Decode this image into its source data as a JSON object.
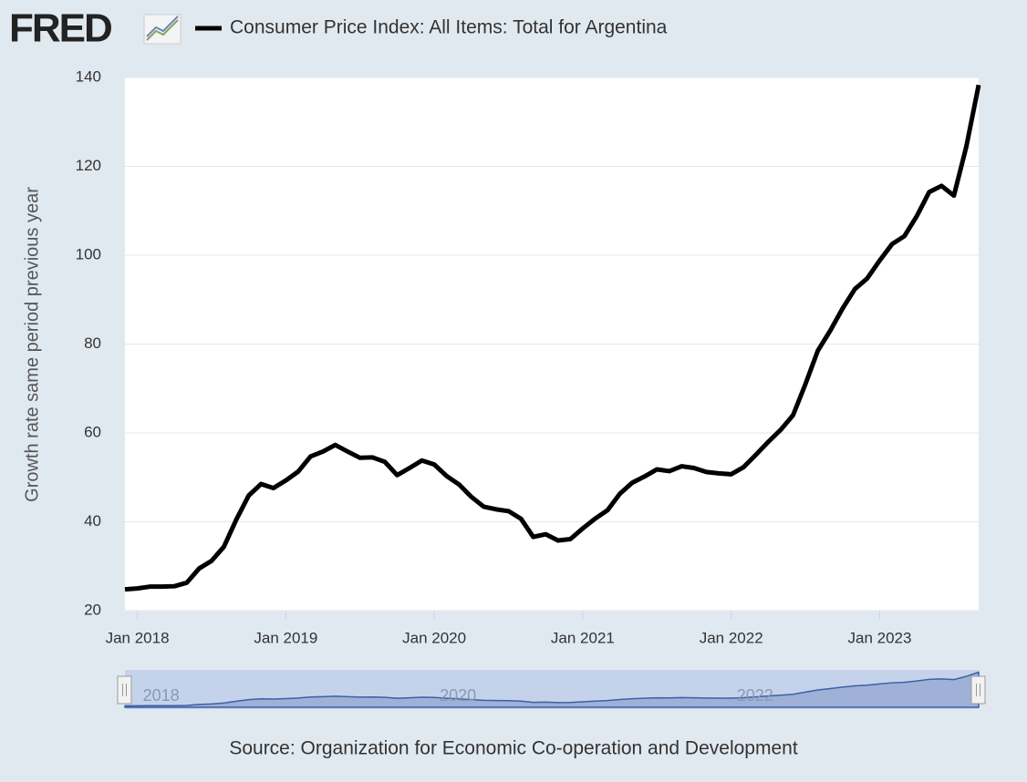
{
  "logo": "FRED",
  "chart_data": {
    "type": "line",
    "title": "Consumer Price Index: All Items: Total for Argentina",
    "y_label": "Growth rate same period previous year",
    "source": "Source: Organization for Economic Co-operation and Development",
    "x": [
      "2017-12",
      "2018-01",
      "2018-02",
      "2018-03",
      "2018-04",
      "2018-05",
      "2018-06",
      "2018-07",
      "2018-08",
      "2018-09",
      "2018-10",
      "2018-11",
      "2018-12",
      "2019-01",
      "2019-02",
      "2019-03",
      "2019-04",
      "2019-05",
      "2019-06",
      "2019-07",
      "2019-08",
      "2019-09",
      "2019-10",
      "2019-11",
      "2019-12",
      "2020-01",
      "2020-02",
      "2020-03",
      "2020-04",
      "2020-05",
      "2020-06",
      "2020-07",
      "2020-08",
      "2020-09",
      "2020-10",
      "2020-11",
      "2020-12",
      "2021-01",
      "2021-02",
      "2021-03",
      "2021-04",
      "2021-05",
      "2021-06",
      "2021-07",
      "2021-08",
      "2021-09",
      "2021-10",
      "2021-11",
      "2021-12",
      "2022-01",
      "2022-02",
      "2022-03",
      "2022-04",
      "2022-05",
      "2022-06",
      "2022-07",
      "2022-08",
      "2022-09",
      "2022-10",
      "2022-11",
      "2022-12",
      "2023-01",
      "2023-02",
      "2023-03",
      "2023-04",
      "2023-05",
      "2023-06",
      "2023-07",
      "2023-08",
      "2023-09"
    ],
    "series": [
      {
        "name": "Consumer Price Index: All Items: Total for Argentina",
        "color": "#000000",
        "values": [
          24.8,
          25.0,
          25.4,
          25.4,
          25.5,
          26.3,
          29.5,
          31.2,
          34.4,
          40.5,
          45.9,
          48.5,
          47.6,
          49.3,
          51.3,
          54.7,
          55.8,
          57.3,
          55.8,
          54.4,
          54.5,
          53.5,
          50.5,
          52.1,
          53.8,
          52.9,
          50.3,
          48.4,
          45.6,
          43.4,
          42.8,
          42.4,
          40.7,
          36.6,
          37.2,
          35.8,
          36.1,
          38.5,
          40.7,
          42.6,
          46.3,
          48.8,
          50.2,
          51.8,
          51.4,
          52.5,
          52.1,
          51.2,
          50.9,
          50.7,
          52.3,
          55.1,
          58.0,
          60.7,
          64.0,
          71.0,
          78.5,
          83.0,
          88.0,
          92.4,
          94.8,
          98.8,
          102.5,
          104.3,
          108.8,
          114.2,
          115.6,
          113.4,
          124.4,
          138.3
        ]
      }
    ],
    "xlim": [
      "2017-12",
      "2023-09"
    ],
    "xticks": [
      {
        "value": "2018-01",
        "label": "Jan 2018"
      },
      {
        "value": "2019-01",
        "label": "Jan 2019"
      },
      {
        "value": "2020-01",
        "label": "Jan 2020"
      },
      {
        "value": "2021-01",
        "label": "Jan 2021"
      },
      {
        "value": "2022-01",
        "label": "Jan 2022"
      },
      {
        "value": "2023-01",
        "label": "Jan 2023"
      }
    ],
    "ylim": [
      20,
      140
    ],
    "yticks": [
      20,
      40,
      60,
      80,
      100,
      120,
      140
    ],
    "grid": true,
    "navigator_ticks": [
      {
        "value": "2018-01",
        "label": "2018"
      },
      {
        "value": "2020-01",
        "label": "2020"
      },
      {
        "value": "2022-01",
        "label": "2022"
      }
    ]
  }
}
